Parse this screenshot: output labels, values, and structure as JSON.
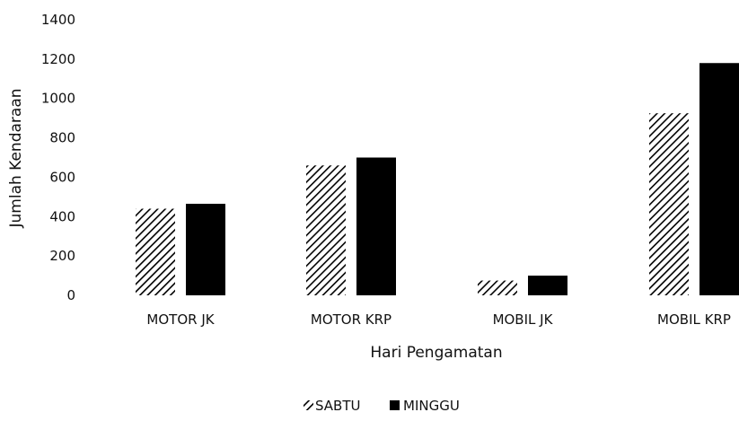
{
  "chart_data": {
    "type": "bar",
    "categories": [
      "MOTOR JK",
      "MOTOR KRP",
      "MOBIL JK",
      "MOBIL KRP"
    ],
    "series": [
      {
        "name": "SABTU",
        "values": [
          440,
          660,
          75,
          925
        ],
        "pattern": "diagonal-hatch",
        "color": "#000000"
      },
      {
        "name": "MINGGU",
        "values": [
          465,
          700,
          100,
          1180
        ],
        "pattern": "solid",
        "color": "#000000"
      }
    ],
    "xlabel": "Hari Pengamatan",
    "ylabel": "Jumlah Kendaraan",
    "ylim": [
      0,
      1400
    ],
    "yticks": [
      "0",
      "200",
      "400",
      "600",
      "800",
      "1000",
      "1200",
      "1400"
    ],
    "grid": false,
    "legend": "bottom"
  }
}
